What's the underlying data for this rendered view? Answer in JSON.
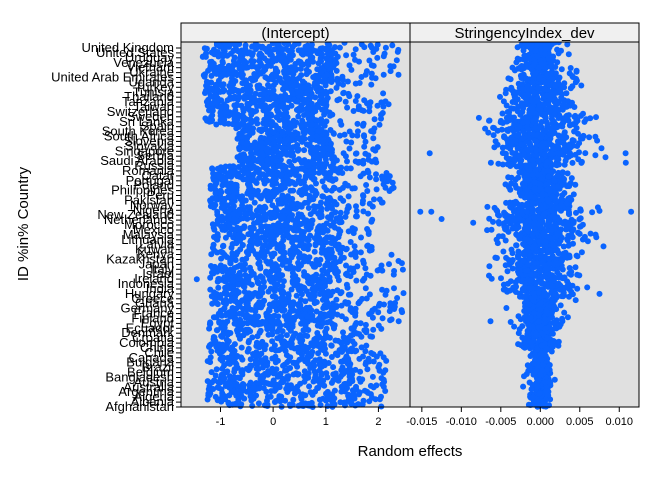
{
  "chart_data": {
    "type": "scatter",
    "ylabel": "ID %in% Country",
    "xlabel": "Random effects",
    "colors": {
      "point": "#0a64ff",
      "panel_background": "#e0e0e0",
      "strip_background": "#f0f0f0",
      "frame": "#000000"
    },
    "grid": false,
    "legend": "none",
    "panels": [
      {
        "name": "intercept",
        "strip_label": "(Intercept)",
        "xlim": [
          -1.75,
          2.6
        ],
        "ticks": [
          -1,
          0,
          1,
          2
        ],
        "tick_labels": [
          "-1",
          "0",
          "1",
          "2"
        ],
        "bands": [
          {
            "y_from": 0.0,
            "y_to": 0.23,
            "x_min": -1.25,
            "x_max": 1.45,
            "spread_max": 2.15,
            "n": 700
          },
          {
            "y_from": 0.23,
            "y_to": 0.42,
            "x_min": -1.2,
            "x_max": 1.2,
            "spread_max": 2.5,
            "n": 650
          },
          {
            "y_from": 0.42,
            "y_to": 0.55,
            "x_min": -1.15,
            "x_max": 1.1,
            "spread_max": 1.9,
            "n": 450
          },
          {
            "y_from": 0.55,
            "y_to": 0.66,
            "x_min": -1.2,
            "x_max": 1.15,
            "spread_max": 2.3,
            "n": 420
          },
          {
            "y_from": 0.66,
            "y_to": 0.77,
            "x_min": -0.7,
            "x_max": 1.05,
            "spread_max": 2.0,
            "n": 380
          },
          {
            "y_from": 0.77,
            "y_to": 0.9,
            "x_min": -1.3,
            "x_max": 1.0,
            "spread_max": 2.2,
            "n": 480
          },
          {
            "y_from": 0.9,
            "y_to": 1.0,
            "x_min": -1.35,
            "x_max": 1.1,
            "spread_max": 2.4,
            "n": 380
          }
        ],
        "outliers": [
          {
            "x": -1.45,
            "y": 0.35
          },
          {
            "x": 2.45,
            "y": 0.26
          },
          {
            "x": 2.25,
            "y": 0.24
          },
          {
            "x": 2.35,
            "y": 0.95
          },
          {
            "x": 2.05,
            "y": 0.79
          },
          {
            "x": 2.1,
            "y": 0.91
          }
        ]
      },
      {
        "name": "stringency",
        "strip_label": "StringencyIndex_dev",
        "xlim": [
          -0.0165,
          0.0125
        ],
        "ticks": [
          -0.015,
          -0.01,
          -0.005,
          0.0,
          0.005,
          0.01
        ],
        "tick_labels": [
          "-0.015",
          "-0.010",
          "-0.005",
          "0.000",
          "0.005",
          "0.010"
        ],
        "bands": [
          {
            "y_from": 0.0,
            "y_to": 0.16,
            "sd": 0.0007,
            "n": 260
          },
          {
            "y_from": 0.16,
            "y_to": 0.3,
            "sd": 0.0012,
            "n": 330
          },
          {
            "y_from": 0.3,
            "y_to": 0.45,
            "sd": 0.0022,
            "n": 380
          },
          {
            "y_from": 0.45,
            "y_to": 0.57,
            "sd": 0.0028,
            "n": 380
          },
          {
            "y_from": 0.57,
            "y_to": 0.66,
            "sd": 0.0016,
            "n": 260
          },
          {
            "y_from": 0.66,
            "y_to": 0.8,
            "sd": 0.003,
            "n": 420
          },
          {
            "y_from": 0.8,
            "y_to": 0.93,
            "sd": 0.002,
            "n": 300
          },
          {
            "y_from": 0.93,
            "y_to": 1.0,
            "sd": 0.0012,
            "n": 160
          }
        ],
        "outliers": [
          {
            "x": -0.0152,
            "y": 0.535
          },
          {
            "x": -0.0125,
            "y": 0.515
          },
          {
            "x": -0.0138,
            "y": 0.535
          },
          {
            "x": 0.0115,
            "y": 0.535
          },
          {
            "x": -0.014,
            "y": 0.695
          },
          {
            "x": 0.0108,
            "y": 0.695
          },
          {
            "x": -0.0063,
            "y": 0.235
          },
          {
            "x": 0.0075,
            "y": 0.31
          },
          {
            "x": -0.0065,
            "y": 0.36
          },
          {
            "x": 0.008,
            "y": 0.44
          },
          {
            "x": -0.0085,
            "y": 0.505
          },
          {
            "x": 0.0072,
            "y": 0.73
          }
        ]
      }
    ],
    "y_category_labels": [
      "United Kingdom",
      "United States",
      "Uruguay",
      "Venezuela",
      "Vietnam",
      "Ukraine",
      "United Arab Emirates",
      "Uganda",
      "Turkey",
      "Tunisia",
      "Thailand",
      "Tanzania",
      "Taiwan",
      "Switzerland",
      "Sweden",
      "Sri Lanka",
      "Spain",
      "South Korea",
      "South Africa",
      "Slovenia",
      "Slovakia",
      "Singapore",
      "Serbia",
      "Saudi Arabia",
      "Russia",
      "Romania",
      "Qatar",
      "Portugal",
      "Poland",
      "Philippines",
      "Peru",
      "Pakistan",
      "Norway",
      "Nigeria",
      "New Zealand",
      "Netherlands",
      "Morocco",
      "Mexico",
      "Malaysia",
      "Lithuania",
      "Latvia",
      "Kuwait",
      "Kenya",
      "Kazakhstan",
      "Japan",
      "Italy",
      "Israel",
      "Ireland",
      "Indonesia",
      "India",
      "Hungary",
      "Greece",
      "Ghana",
      "Germany",
      "France",
      "Finland",
      "Egypt",
      "Ecuador",
      "Denmark",
      "Croatia",
      "Colombia",
      "China",
      "Chile",
      "Canada",
      "Bulgaria",
      "Brazil",
      "Belgium",
      "Bangladesh",
      "Austria",
      "Australia",
      "Argentina",
      "Algeria",
      "Albania",
      "Afghanistan"
    ]
  }
}
